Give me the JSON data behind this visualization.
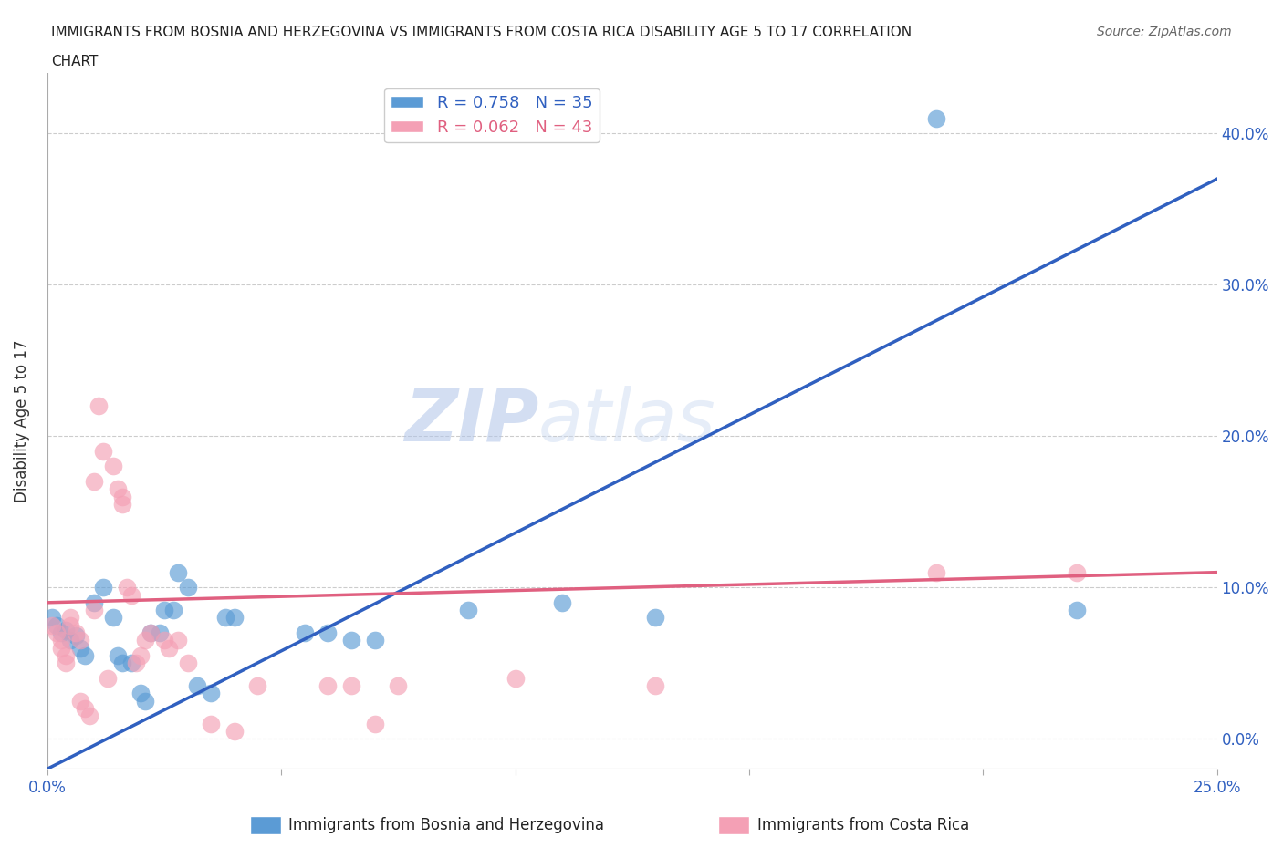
{
  "title_line1": "IMMIGRANTS FROM BOSNIA AND HERZEGOVINA VS IMMIGRANTS FROM COSTA RICA DISABILITY AGE 5 TO 17 CORRELATION",
  "title_line2": "CHART",
  "source": "Source: ZipAtlas.com",
  "xlabel_blue": "Immigrants from Bosnia and Herzegovina",
  "xlabel_pink": "Immigrants from Costa Rica",
  "ylabel": "Disability Age 5 to 17",
  "watermark_zip": "ZIP",
  "watermark_atlas": "atlas",
  "xlim": [
    0.0,
    0.25
  ],
  "ylim": [
    -0.02,
    0.44
  ],
  "xticks": [
    0.0,
    0.05,
    0.1,
    0.15,
    0.2,
    0.25
  ],
  "yticks": [
    0.0,
    0.1,
    0.2,
    0.3,
    0.4
  ],
  "ytick_labels_right": [
    "0.0%",
    "10.0%",
    "20.0%",
    "30.0%",
    "40.0%"
  ],
  "xtick_labels": [
    "0.0%",
    "",
    "",
    "",
    "",
    "25.0%"
  ],
  "legend_blue_R": "R = 0.758",
  "legend_blue_N": "N = 35",
  "legend_pink_R": "R = 0.062",
  "legend_pink_N": "N = 43",
  "blue_color": "#5b9bd5",
  "pink_color": "#f4a0b5",
  "blue_line_color": "#3060c0",
  "pink_line_color": "#e06080",
  "scatter_blue": [
    [
      0.001,
      0.08
    ],
    [
      0.002,
      0.075
    ],
    [
      0.003,
      0.07
    ],
    [
      0.004,
      0.072
    ],
    [
      0.005,
      0.065
    ],
    [
      0.006,
      0.068
    ],
    [
      0.007,
      0.06
    ],
    [
      0.008,
      0.055
    ],
    [
      0.01,
      0.09
    ],
    [
      0.012,
      0.1
    ],
    [
      0.014,
      0.08
    ],
    [
      0.015,
      0.055
    ],
    [
      0.016,
      0.05
    ],
    [
      0.018,
      0.05
    ],
    [
      0.02,
      0.03
    ],
    [
      0.021,
      0.025
    ],
    [
      0.022,
      0.07
    ],
    [
      0.024,
      0.07
    ],
    [
      0.025,
      0.085
    ],
    [
      0.027,
      0.085
    ],
    [
      0.028,
      0.11
    ],
    [
      0.03,
      0.1
    ],
    [
      0.032,
      0.035
    ],
    [
      0.035,
      0.03
    ],
    [
      0.038,
      0.08
    ],
    [
      0.04,
      0.08
    ],
    [
      0.055,
      0.07
    ],
    [
      0.06,
      0.07
    ],
    [
      0.065,
      0.065
    ],
    [
      0.07,
      0.065
    ],
    [
      0.09,
      0.085
    ],
    [
      0.11,
      0.09
    ],
    [
      0.13,
      0.08
    ],
    [
      0.19,
      0.41
    ],
    [
      0.22,
      0.085
    ]
  ],
  "scatter_pink": [
    [
      0.001,
      0.075
    ],
    [
      0.002,
      0.07
    ],
    [
      0.003,
      0.065
    ],
    [
      0.003,
      0.06
    ],
    [
      0.004,
      0.055
    ],
    [
      0.004,
      0.05
    ],
    [
      0.005,
      0.08
    ],
    [
      0.005,
      0.075
    ],
    [
      0.006,
      0.07
    ],
    [
      0.007,
      0.065
    ],
    [
      0.007,
      0.025
    ],
    [
      0.008,
      0.02
    ],
    [
      0.009,
      0.015
    ],
    [
      0.01,
      0.17
    ],
    [
      0.01,
      0.085
    ],
    [
      0.011,
      0.22
    ],
    [
      0.012,
      0.19
    ],
    [
      0.013,
      0.04
    ],
    [
      0.014,
      0.18
    ],
    [
      0.015,
      0.165
    ],
    [
      0.016,
      0.16
    ],
    [
      0.016,
      0.155
    ],
    [
      0.017,
      0.1
    ],
    [
      0.018,
      0.095
    ],
    [
      0.019,
      0.05
    ],
    [
      0.02,
      0.055
    ],
    [
      0.021,
      0.065
    ],
    [
      0.022,
      0.07
    ],
    [
      0.025,
      0.065
    ],
    [
      0.026,
      0.06
    ],
    [
      0.028,
      0.065
    ],
    [
      0.03,
      0.05
    ],
    [
      0.035,
      0.01
    ],
    [
      0.04,
      0.005
    ],
    [
      0.045,
      0.035
    ],
    [
      0.06,
      0.035
    ],
    [
      0.065,
      0.035
    ],
    [
      0.07,
      0.01
    ],
    [
      0.075,
      0.035
    ],
    [
      0.1,
      0.04
    ],
    [
      0.13,
      0.035
    ],
    [
      0.19,
      0.11
    ],
    [
      0.22,
      0.11
    ]
  ],
  "blue_trendline": [
    [
      0.0,
      -0.02
    ],
    [
      0.25,
      0.37
    ]
  ],
  "pink_trendline": [
    [
      0.0,
      0.09
    ],
    [
      0.25,
      0.11
    ]
  ],
  "background_color": "#ffffff",
  "grid_color": "#cccccc"
}
